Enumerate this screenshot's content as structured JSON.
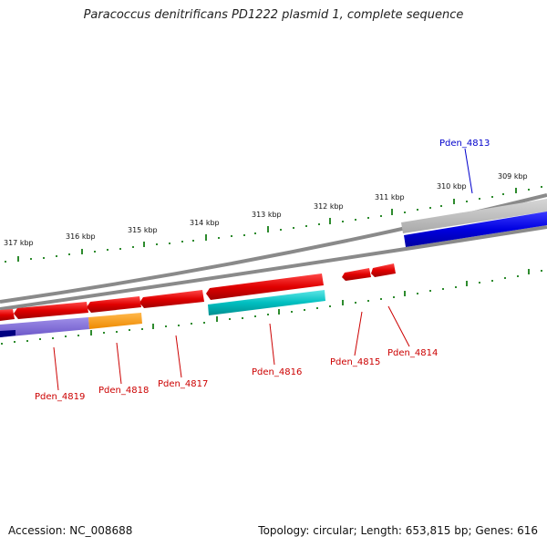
{
  "title": "Paracoccus denitrificans PD1222 plasmid 1, complete sequence",
  "ticks": [
    {
      "label": "309 kbp"
    },
    {
      "label": "310 kbp"
    },
    {
      "label": "311 kbp"
    },
    {
      "label": "312 kbp"
    },
    {
      "label": "313 kbp"
    },
    {
      "label": "314 kbp"
    },
    {
      "label": "315 kbp"
    },
    {
      "label": "316 kbp"
    },
    {
      "label": "317 kbp"
    }
  ],
  "genes": [
    {
      "label": "Pden_4813",
      "color": "#0000cc"
    },
    {
      "label": "Pden_4814",
      "color": "#cc0000"
    },
    {
      "label": "Pden_4815",
      "color": "#cc0000"
    },
    {
      "label": "Pden_4816",
      "color": "#cc0000"
    },
    {
      "label": "Pden_4817",
      "color": "#cc0000"
    },
    {
      "label": "Pden_4818",
      "color": "#cc0000"
    },
    {
      "label": "Pden_4819",
      "color": "#cc0000"
    }
  ],
  "footer": {
    "accession": "Accession: NC_008688",
    "summary": "Topology: circular; Length: 653,815 bp; Genes: 616"
  }
}
